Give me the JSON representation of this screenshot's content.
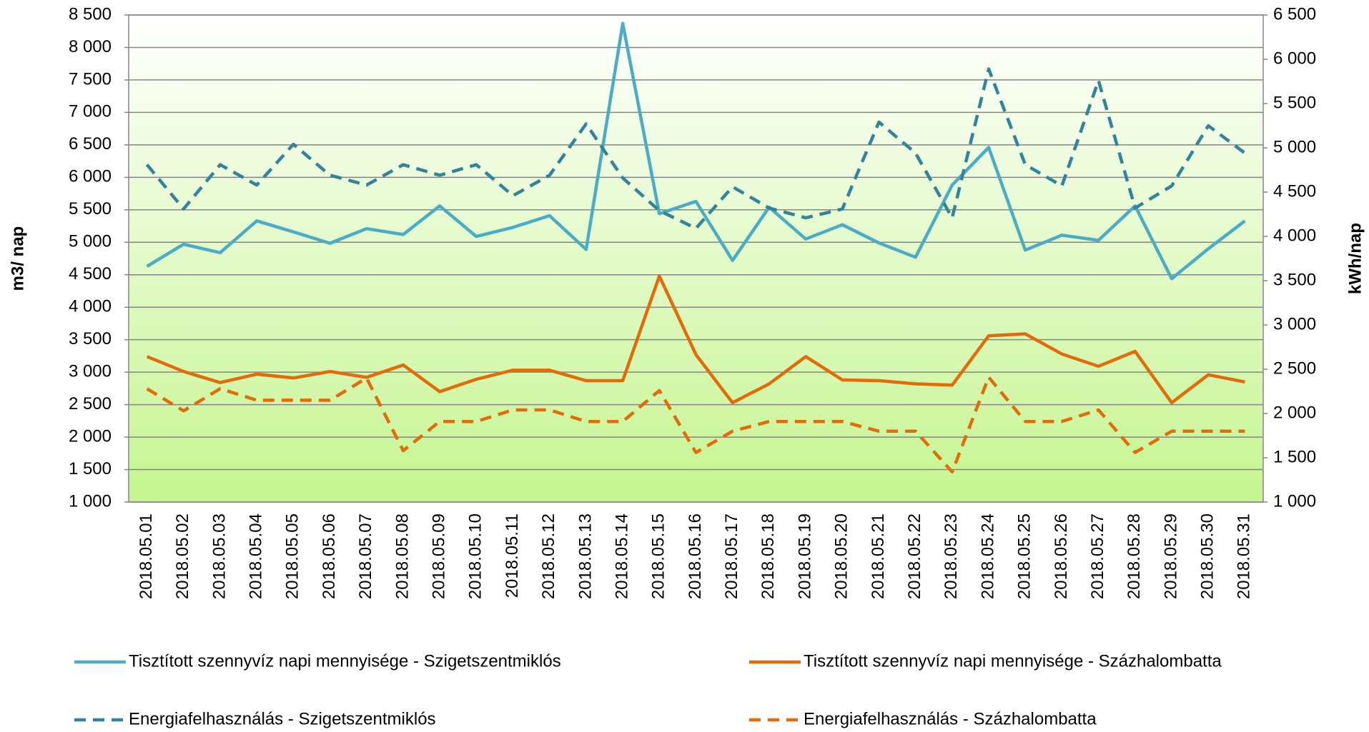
{
  "chart_data": {
    "type": "line",
    "ylabel": "m3/ nap",
    "y2label": "kWh/nap",
    "categories": [
      "2018.05.01",
      "2018.05.02",
      "2018.05.03",
      "2018.05.04",
      "2018.05.05",
      "2018.05.06",
      "2018.05.07",
      "2018.05.08",
      "2018.05.09",
      "2018.05.10",
      "2018.05.11",
      "2018.05.12",
      "2018.05.13",
      "2018.05.14",
      "2018.05.15",
      "2018.05.16",
      "2018.05.17",
      "2018.05.18",
      "2018.05.19",
      "2018.05.20",
      "2018.05.21",
      "2018.05.22",
      "2018.05.23",
      "2018.05.24",
      "2018.05.25",
      "2018.05.26",
      "2018.05.27",
      "2018.05.28",
      "2018.05.29",
      "2018.05.30",
      "2018.05.31"
    ],
    "ylim": [
      1000,
      8500
    ],
    "yticks": [
      {
        "value": 1000,
        "label": "1 000"
      },
      {
        "value": 1500,
        "label": "1 500"
      },
      {
        "value": 2000,
        "label": "2 000"
      },
      {
        "value": 2500,
        "label": "2 500"
      },
      {
        "value": 3000,
        "label": "3 000"
      },
      {
        "value": 3500,
        "label": "3 500"
      },
      {
        "value": 4000,
        "label": "4 000"
      },
      {
        "value": 4500,
        "label": "4 500"
      },
      {
        "value": 5000,
        "label": "5 000"
      },
      {
        "value": 5500,
        "label": "5 500"
      },
      {
        "value": 6000,
        "label": "6 000"
      },
      {
        "value": 6500,
        "label": "6 500"
      },
      {
        "value": 7000,
        "label": "7 000"
      },
      {
        "value": 7500,
        "label": "7 500"
      },
      {
        "value": 8000,
        "label": "8 000"
      },
      {
        "value": 8500,
        "label": "8 500"
      }
    ],
    "y2lim": [
      1000,
      6500
    ],
    "y2ticks": [
      {
        "value": 1000,
        "label": "1 000"
      },
      {
        "value": 1500,
        "label": "1 500"
      },
      {
        "value": 2000,
        "label": "2 000"
      },
      {
        "value": 2500,
        "label": "2 500"
      },
      {
        "value": 3000,
        "label": "3 000"
      },
      {
        "value": 3500,
        "label": "3 500"
      },
      {
        "value": 4000,
        "label": "4 000"
      },
      {
        "value": 4500,
        "label": "4 500"
      },
      {
        "value": 5000,
        "label": "5 000"
      },
      {
        "value": 5500,
        "label": "5 500"
      },
      {
        "value": 6000,
        "label": "6 000"
      },
      {
        "value": 6500,
        "label": "6 500"
      }
    ],
    "grid": true,
    "legend": "bottom",
    "series": [
      {
        "name": "Tisztított szennyvíz napi mennyisége - Szigetszentmiklós",
        "color": "#4bacc6",
        "line_style": "solid",
        "axis": "y",
        "values": [
          4630,
          4970,
          4840,
          5330,
          5160,
          4985,
          5210,
          5120,
          5560,
          5090,
          5230,
          5410,
          4890,
          8370,
          5440,
          5630,
          4720,
          5540,
          5050,
          5270,
          4990,
          4770,
          5880,
          6460,
          4880,
          5110,
          5030,
          5560,
          4440,
          4900,
          5330
        ]
      },
      {
        "name": "Tisztított szennyvíz napi mennyisége - Százhalombatta",
        "color": "#e36c0a",
        "line_style": "solid",
        "axis": "y",
        "values": [
          3240,
          3010,
          2840,
          2970,
          2910,
          3010,
          2920,
          3110,
          2700,
          2890,
          3030,
          3030,
          2870,
          2870,
          4480,
          3270,
          2530,
          2820,
          3240,
          2880,
          2870,
          2820,
          2800,
          3560,
          3590,
          3280,
          3090,
          3320,
          2530,
          2960,
          2850
        ]
      },
      {
        "name": "Energiafelhasználás - Szigetszentmiklós",
        "color": "#31849b",
        "line_style": "dashed",
        "axis": "y2",
        "values": [
          4810,
          4310,
          4810,
          4580,
          5040,
          4690,
          4580,
          4810,
          4690,
          4810,
          4460,
          4690,
          5270,
          4660,
          4290,
          4090,
          4560,
          4320,
          4210,
          4310,
          5290,
          4940,
          4210,
          5890,
          4810,
          4570,
          5760,
          4320,
          4570,
          5250,
          4940
        ]
      },
      {
        "name": "Energiafelhasználás - Százhalombatta",
        "color": "#e36c0a",
        "line_style": "dashed",
        "axis": "y2",
        "values": [
          2280,
          2030,
          2280,
          2150,
          2150,
          2150,
          2400,
          1580,
          1910,
          1910,
          2040,
          2040,
          1910,
          1910,
          2260,
          1560,
          1800,
          1910,
          1910,
          1910,
          1800,
          1800,
          1340,
          2410,
          1910,
          1910,
          2040,
          1560,
          1800,
          1800,
          1800
        ]
      }
    ]
  }
}
